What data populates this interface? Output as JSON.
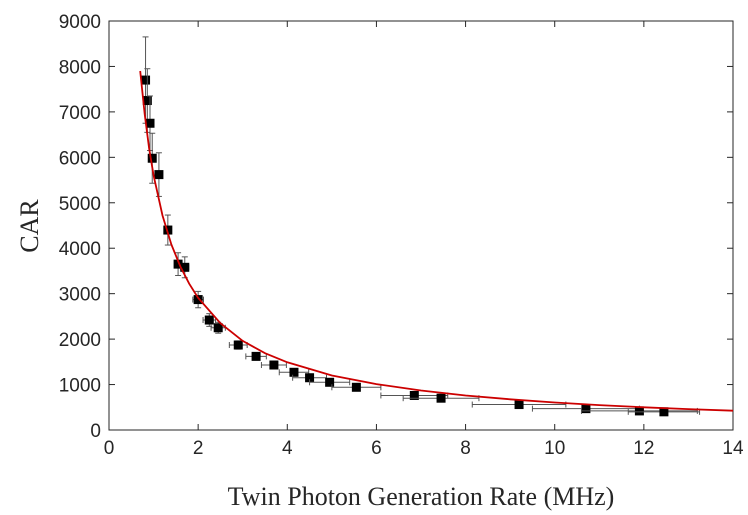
{
  "chart_data": {
    "type": "scatter",
    "title": "",
    "xlabel": "Twin Photon Generation Rate (MHz)",
    "ylabel": "CAR",
    "xlim": [
      0,
      14
    ],
    "ylim": [
      0,
      9000
    ],
    "xticks": [
      "0",
      "2",
      "4",
      "6",
      "8",
      "10",
      "12",
      "14"
    ],
    "yticks": [
      "0",
      "1000",
      "2000",
      "3000",
      "4000",
      "5000",
      "6000",
      "7000",
      "8000",
      "9000"
    ],
    "grid": false,
    "legend": "none",
    "series": [
      {
        "type": "scatter",
        "marker": "square",
        "color": "#000000",
        "error_bar_color": "#555555",
        "points": [
          {
            "x": 0.82,
            "y": 7700,
            "yerr": 950,
            "xerr": 0.03
          },
          {
            "x": 0.86,
            "y": 7250,
            "yerr": 700,
            "xerr": 0.03
          },
          {
            "x": 0.92,
            "y": 6750,
            "yerr": 600,
            "xerr": 0.04
          },
          {
            "x": 0.97,
            "y": 5980,
            "yerr": 550,
            "xerr": 0.04
          },
          {
            "x": 1.12,
            "y": 5620,
            "yerr": 480,
            "xerr": 0.05
          },
          {
            "x": 1.32,
            "y": 4400,
            "yerr": 330,
            "xerr": 0.06
          },
          {
            "x": 1.55,
            "y": 3650,
            "yerr": 250,
            "xerr": 0.08
          },
          {
            "x": 1.7,
            "y": 3580,
            "yerr": 230,
            "xerr": 0.09
          },
          {
            "x": 2.0,
            "y": 2870,
            "yerr": 180,
            "xerr": 0.12
          },
          {
            "x": 2.25,
            "y": 2420,
            "yerr": 140,
            "xerr": 0.14
          },
          {
            "x": 2.45,
            "y": 2250,
            "yerr": 120,
            "xerr": 0.16
          },
          {
            "x": 2.9,
            "y": 1870,
            "yerr": 90,
            "xerr": 0.2
          },
          {
            "x": 3.3,
            "y": 1620,
            "yerr": 75,
            "xerr": 0.23
          },
          {
            "x": 3.7,
            "y": 1430,
            "yerr": 65,
            "xerr": 0.28
          },
          {
            "x": 4.15,
            "y": 1270,
            "yerr": 55,
            "xerr": 0.33
          },
          {
            "x": 4.5,
            "y": 1150,
            "yerr": 50,
            "xerr": 0.38
          },
          {
            "x": 4.95,
            "y": 1050,
            "yerr": 45,
            "xerr": 0.45
          },
          {
            "x": 5.55,
            "y": 940,
            "yerr": 40,
            "xerr": 0.55
          },
          {
            "x": 6.85,
            "y": 760,
            "yerr": 35,
            "xerr": 0.75
          },
          {
            "x": 7.45,
            "y": 700,
            "yerr": 30,
            "xerr": 0.85
          },
          {
            "x": 9.2,
            "y": 560,
            "yerr": 25,
            "xerr": 1.05
          },
          {
            "x": 10.7,
            "y": 470,
            "yerr": 20,
            "xerr": 1.2
          },
          {
            "x": 11.9,
            "y": 420,
            "yerr": 20,
            "xerr": 1.3
          },
          {
            "x": 12.45,
            "y": 400,
            "yerr": 20,
            "xerr": 0.8
          }
        ]
      },
      {
        "type": "line",
        "color": "#cc0000",
        "x": [
          0.7,
          0.8,
          0.9,
          1.0,
          1.2,
          1.4,
          1.6,
          1.8,
          2.0,
          2.5,
          3.0,
          3.5,
          4.0,
          5.0,
          6.0,
          7.0,
          8.0,
          9.0,
          10.0,
          11.0,
          12.0,
          13.0,
          14.0
        ],
        "y": [
          7900,
          6950,
          6200,
          5600,
          4720,
          4080,
          3600,
          3220,
          2910,
          2350,
          1960,
          1690,
          1490,
          1200,
          1010,
          870,
          760,
          675,
          605,
          548,
          500,
          459,
          425
        ]
      }
    ]
  }
}
